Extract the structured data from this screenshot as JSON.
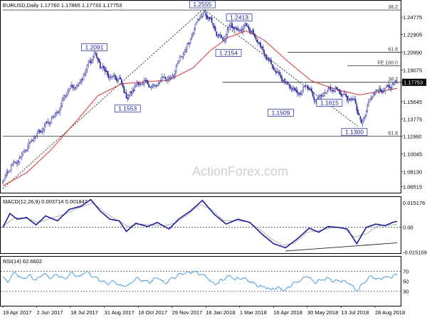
{
  "titles": {
    "main": "EURUSD,Daily  1.17760 1.17865 1.17733 1.17753",
    "macd": "MACD(12,26,9) 0.003714 0.001847",
    "rsi": "RSI(14) 62.6602"
  },
  "watermark": "ActionForex.com",
  "colors": {
    "candle": "#1c1c9a",
    "ma": "#e03030",
    "macd_line": "#1c1c9a",
    "signal_line": "#a0a0a0",
    "rsi_line": "#1e88d8",
    "level_line": "#000000",
    "trend_line": "#000000"
  },
  "chart_data": [
    {
      "type": "candlestick",
      "ylim": [
        1.0585,
        1.2655
      ],
      "y_ticks": [
        "1.24775",
        "1.22905",
        "1.20990",
        "1.19075",
        "1.17753",
        "1.15645",
        "1.13775",
        "1.11960",
        "1.10045",
        "1.08130",
        "1.06515"
      ],
      "y_tick_values": [
        1.24775,
        1.22905,
        1.2099,
        1.19075,
        1.17753,
        1.15645,
        1.13775,
        1.1196,
        1.10045,
        1.0813,
        1.06515
      ],
      "current_price": "1.17753",
      "x_ticks": [
        "19 Apr 2017",
        "2 Jun 2017",
        "18 Jul 2017",
        "31 Aug 2017",
        "16 Oct 2017",
        "29 Nov 2017",
        "16 Jan 2018",
        "1 Mar 2018",
        "16 Apr 2018",
        "30 May 2018",
        "13 Jul 2018",
        "28 Aug 2018"
      ],
      "price_keypoints": [
        [
          0,
          1.07
        ],
        [
          6,
          1.085
        ],
        [
          15,
          1.097
        ],
        [
          25,
          1.116
        ],
        [
          35,
          1.13
        ],
        [
          45,
          1.143
        ],
        [
          55,
          1.17
        ],
        [
          65,
          1.177
        ],
        [
          72,
          1.196
        ],
        [
          77,
          1.209
        ],
        [
          82,
          1.196
        ],
        [
          90,
          1.183
        ],
        [
          98,
          1.181
        ],
        [
          105,
          1.16
        ],
        [
          112,
          1.175
        ],
        [
          120,
          1.177
        ],
        [
          128,
          1.172
        ],
        [
          135,
          1.183
        ],
        [
          142,
          1.182
        ],
        [
          150,
          1.205
        ],
        [
          156,
          1.218
        ],
        [
          162,
          1.24
        ],
        [
          168,
          1.252
        ],
        [
          174,
          1.247
        ],
        [
          180,
          1.23
        ],
        [
          186,
          1.223
        ],
        [
          192,
          1.241
        ],
        [
          198,
          1.232
        ],
        [
          204,
          1.239
        ],
        [
          210,
          1.231
        ],
        [
          218,
          1.214
        ],
        [
          226,
          1.195
        ],
        [
          234,
          1.183
        ],
        [
          242,
          1.172
        ],
        [
          250,
          1.165
        ],
        [
          256,
          1.175
        ],
        [
          262,
          1.16
        ],
        [
          268,
          1.163
        ],
        [
          274,
          1.17
        ],
        [
          282,
          1.169
        ],
        [
          290,
          1.16
        ],
        [
          296,
          1.158
        ],
        [
          302,
          1.132
        ],
        [
          308,
          1.156
        ],
        [
          314,
          1.17
        ],
        [
          320,
          1.167
        ],
        [
          326,
          1.173
        ],
        [
          332,
          1.178
        ]
      ],
      "moving_average_keypoints": [
        [
          0,
          1.066
        ],
        [
          20,
          1.08
        ],
        [
          40,
          1.104
        ],
        [
          60,
          1.133
        ],
        [
          80,
          1.163
        ],
        [
          100,
          1.176
        ],
        [
          120,
          1.178
        ],
        [
          140,
          1.18
        ],
        [
          160,
          1.193
        ],
        [
          175,
          1.212
        ],
        [
          190,
          1.226
        ],
        [
          205,
          1.233
        ],
        [
          220,
          1.223
        ],
        [
          240,
          1.2
        ],
        [
          260,
          1.179
        ],
        [
          280,
          1.17
        ],
        [
          300,
          1.164
        ],
        [
          320,
          1.168
        ],
        [
          332,
          1.171
        ]
      ],
      "annotations": [
        {
          "label": "1.2555",
          "bar": 168,
          "price": 1.2555
        },
        {
          "label": "1.2413",
          "bar": 199,
          "price": 1.2413
        },
        {
          "label": "1.2154",
          "bar": 190,
          "price": 1.2154
        },
        {
          "label": "1.2091",
          "bar": 77,
          "price": 1.2091
        },
        {
          "label": "1.1553",
          "bar": 105,
          "price": 1.1553
        },
        {
          "label": "1.1509",
          "bar": 234,
          "price": 1.1509
        },
        {
          "label": "1.1615",
          "bar": 275,
          "price": 1.1615
        },
        {
          "label": "1.1300",
          "bar": 296,
          "price": 1.13
        }
      ],
      "levels": [
        {
          "label": "38.2",
          "price": 1.2555,
          "from_bar": 0
        },
        {
          "label": "61.8",
          "price": 1.2099,
          "from_bar": 240
        },
        {
          "label": "FE 100.0",
          "price": 1.1952,
          "from_bar": 290
        },
        {
          "label": "38.2",
          "price": 1.17753,
          "from_bar": 185
        },
        {
          "label": "61.8",
          "price": 1.1196,
          "from_bar": 0
        }
      ],
      "trend_lines": [
        {
          "from": [
            0,
            1.063
          ],
          "to": [
            168,
            1.2555
          ]
        },
        {
          "from": [
            170,
            1.2555
          ],
          "to": [
            299,
            1.13
          ]
        }
      ],
      "bar_count": 333
    },
    {
      "type": "line",
      "name": "MACD(12,26,9)",
      "ylim": [
        -0.0158,
        0.0186
      ],
      "y_ticks": [
        "0.015176",
        "0.00",
        "-0.015109"
      ],
      "y_tick_values": [
        0.015176,
        0.0,
        -0.015109
      ],
      "macd_keypoints": [
        [
          0,
          0.0
        ],
        [
          6,
          0.0085
        ],
        [
          12,
          0.005
        ],
        [
          20,
          0.006
        ],
        [
          28,
          0.0015
        ],
        [
          36,
          0.007
        ],
        [
          46,
          0.004
        ],
        [
          56,
          0.011
        ],
        [
          66,
          0.013
        ],
        [
          74,
          0.017
        ],
        [
          82,
          0.01
        ],
        [
          90,
          0.005
        ],
        [
          98,
          0.004
        ],
        [
          104,
          -0.0025
        ],
        [
          112,
          0.0025
        ],
        [
          122,
          0.0005
        ],
        [
          130,
          0.003
        ],
        [
          140,
          -0.001
        ],
        [
          148,
          0.005
        ],
        [
          158,
          0.01
        ],
        [
          168,
          0.0165
        ],
        [
          178,
          0.008
        ],
        [
          188,
          0.002
        ],
        [
          198,
          0.005
        ],
        [
          208,
          0.003
        ],
        [
          218,
          -0.004
        ],
        [
          228,
          -0.01
        ],
        [
          238,
          -0.0125
        ],
        [
          248,
          -0.007
        ],
        [
          258,
          -0.0005
        ],
        [
          266,
          -0.003
        ],
        [
          274,
          0.0005
        ],
        [
          282,
          0.0
        ],
        [
          290,
          -0.001
        ],
        [
          298,
          -0.01
        ],
        [
          306,
          0.0
        ],
        [
          314,
          0.002
        ],
        [
          322,
          0.001
        ],
        [
          328,
          0.003
        ],
        [
          332,
          0.0037
        ]
      ],
      "signal_keypoints": [
        [
          0,
          0.0005
        ],
        [
          10,
          0.006
        ],
        [
          20,
          0.0055
        ],
        [
          30,
          0.003
        ],
        [
          40,
          0.0055
        ],
        [
          52,
          0.008
        ],
        [
          64,
          0.012
        ],
        [
          76,
          0.015
        ],
        [
          86,
          0.009
        ],
        [
          96,
          0.0045
        ],
        [
          106,
          0.0005
        ],
        [
          116,
          0.002
        ],
        [
          126,
          0.0015
        ],
        [
          136,
          0.001
        ],
        [
          146,
          0.003
        ],
        [
          156,
          0.008
        ],
        [
          166,
          0.014
        ],
        [
          176,
          0.011
        ],
        [
          186,
          0.004
        ],
        [
          196,
          0.004
        ],
        [
          206,
          0.0035
        ],
        [
          216,
          -0.001
        ],
        [
          226,
          -0.007
        ],
        [
          236,
          -0.011
        ],
        [
          246,
          -0.0095
        ],
        [
          256,
          -0.003
        ],
        [
          266,
          -0.002
        ],
        [
          276,
          -0.0005
        ],
        [
          286,
          0.0
        ],
        [
          296,
          -0.006
        ],
        [
          306,
          -0.004
        ],
        [
          316,
          0.001
        ],
        [
          326,
          0.0015
        ],
        [
          332,
          0.0018
        ]
      ],
      "trend_lines": [
        {
          "from": [
            238,
            -0.0145
          ],
          "to": [
            332,
            -0.0095
          ]
        }
      ]
    },
    {
      "type": "line",
      "name": "RSI(14)",
      "ylim": [
        0,
        100
      ],
      "y_ticks": [
        "70",
        "50",
        "30"
      ],
      "y_tick_values": [
        70,
        50,
        30
      ],
      "rsi_keypoints": [
        [
          0,
          60
        ],
        [
          4,
          48
        ],
        [
          10,
          68
        ],
        [
          16,
          55
        ],
        [
          22,
          62
        ],
        [
          28,
          52
        ],
        [
          34,
          66
        ],
        [
          40,
          57
        ],
        [
          46,
          63
        ],
        [
          52,
          55
        ],
        [
          58,
          67
        ],
        [
          64,
          58
        ],
        [
          70,
          70
        ],
        [
          76,
          60
        ],
        [
          82,
          52
        ],
        [
          88,
          45
        ],
        [
          94,
          50
        ],
        [
          100,
          40
        ],
        [
          106,
          42
        ],
        [
          112,
          55
        ],
        [
          118,
          52
        ],
        [
          124,
          48
        ],
        [
          130,
          58
        ],
        [
          136,
          46
        ],
        [
          142,
          55
        ],
        [
          148,
          62
        ],
        [
          154,
          66
        ],
        [
          160,
          70
        ],
        [
          166,
          65
        ],
        [
          172,
          58
        ],
        [
          178,
          44
        ],
        [
          184,
          52
        ],
        [
          190,
          60
        ],
        [
          196,
          54
        ],
        [
          202,
          58
        ],
        [
          208,
          50
        ],
        [
          214,
          42
        ],
        [
          220,
          38
        ],
        [
          226,
          33
        ],
        [
          232,
          38
        ],
        [
          238,
          30
        ],
        [
          244,
          45
        ],
        [
          250,
          50
        ],
        [
          256,
          62
        ],
        [
          262,
          48
        ],
        [
          268,
          52
        ],
        [
          274,
          55
        ],
        [
          280,
          50
        ],
        [
          286,
          52
        ],
        [
          292,
          45
        ],
        [
          298,
          30
        ],
        [
          304,
          48
        ],
        [
          310,
          60
        ],
        [
          316,
          55
        ],
        [
          322,
          58
        ],
        [
          328,
          60
        ],
        [
          332,
          63
        ]
      ]
    }
  ]
}
